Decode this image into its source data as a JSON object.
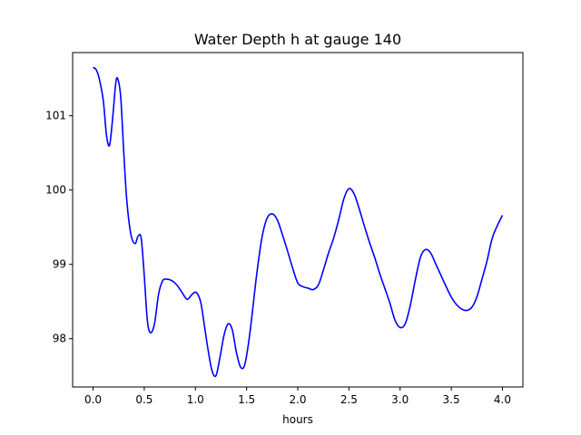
{
  "chart_data": {
    "type": "line",
    "title": "Water Depth h at gauge 140",
    "xlabel": "hours",
    "ylabel": "",
    "xlim": [
      -0.2,
      4.2
    ],
    "ylim": [
      97.35,
      101.85
    ],
    "xticks": [
      0.0,
      0.5,
      1.0,
      1.5,
      2.0,
      2.5,
      3.0,
      3.5,
      4.0
    ],
    "xtick_labels": [
      "0.0",
      "0.5",
      "1.0",
      "1.5",
      "2.0",
      "2.5",
      "3.0",
      "3.5",
      "4.0"
    ],
    "yticks": [
      98,
      99,
      100,
      101
    ],
    "ytick_labels": [
      "98",
      "99",
      "100",
      "101"
    ],
    "grid": false,
    "series": [
      {
        "color": "#0000ff",
        "x": [
          0.0,
          0.03,
          0.06,
          0.1,
          0.13,
          0.16,
          0.19,
          0.22,
          0.24,
          0.27,
          0.3,
          0.33,
          0.37,
          0.41,
          0.44,
          0.47,
          0.5,
          0.53,
          0.56,
          0.6,
          0.64,
          0.68,
          0.72,
          0.77,
          0.82,
          0.87,
          0.92,
          0.97,
          1.01,
          1.05,
          1.08,
          1.12,
          1.16,
          1.2,
          1.24,
          1.28,
          1.32,
          1.36,
          1.4,
          1.44,
          1.48,
          1.52,
          1.56,
          1.6,
          1.65,
          1.7,
          1.75,
          1.8,
          1.85,
          1.9,
          1.95,
          2.0,
          2.05,
          2.1,
          2.15,
          2.2,
          2.25,
          2.3,
          2.35,
          2.4,
          2.45,
          2.5,
          2.55,
          2.6,
          2.65,
          2.7,
          2.75,
          2.8,
          2.85,
          2.9,
          2.95,
          3.0,
          3.05,
          3.1,
          3.15,
          3.2,
          3.25,
          3.3,
          3.35,
          3.4,
          3.45,
          3.5,
          3.55,
          3.6,
          3.65,
          3.7,
          3.75,
          3.8,
          3.85,
          3.9,
          3.95,
          4.0
        ],
        "y": [
          101.65,
          101.62,
          101.5,
          101.2,
          100.75,
          100.6,
          100.95,
          101.42,
          101.5,
          101.25,
          100.5,
          99.85,
          99.4,
          99.28,
          99.38,
          99.35,
          98.85,
          98.25,
          98.08,
          98.2,
          98.6,
          98.78,
          98.8,
          98.78,
          98.72,
          98.62,
          98.53,
          98.6,
          98.62,
          98.5,
          98.25,
          97.88,
          97.58,
          97.5,
          97.75,
          98.05,
          98.2,
          98.12,
          97.82,
          97.62,
          97.64,
          97.95,
          98.4,
          98.88,
          99.36,
          99.62,
          99.68,
          99.6,
          99.4,
          99.18,
          98.95,
          98.75,
          98.7,
          98.68,
          98.66,
          98.72,
          98.92,
          99.15,
          99.35,
          99.6,
          99.88,
          100.02,
          99.95,
          99.75,
          99.52,
          99.3,
          99.1,
          98.88,
          98.68,
          98.48,
          98.25,
          98.15,
          98.2,
          98.45,
          98.8,
          99.1,
          99.2,
          99.15,
          99.0,
          98.85,
          98.7,
          98.56,
          98.46,
          98.4,
          98.38,
          98.42,
          98.56,
          98.8,
          99.05,
          99.35,
          99.52,
          99.66
        ]
      }
    ]
  }
}
